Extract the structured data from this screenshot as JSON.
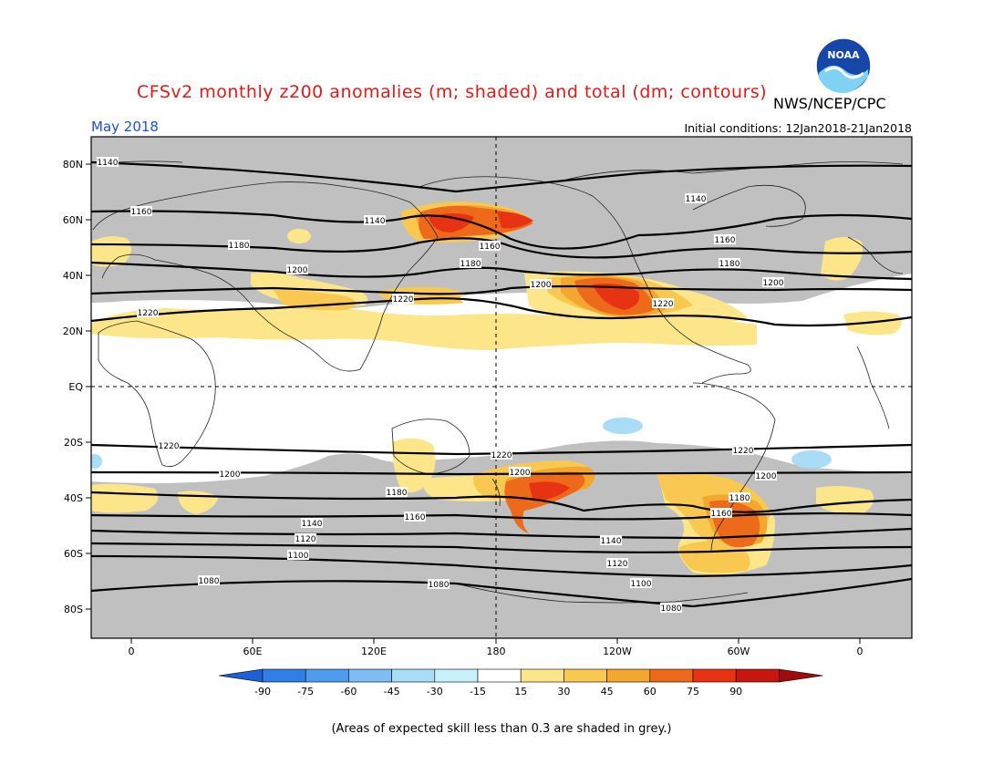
{
  "title": "CFSv2 monthly z200 anomalies (m; shaded) and total (dm; contours)",
  "agency": "NWS/NCEP/CPC",
  "valid_month": "May 2018",
  "initial_conditions": "Initial conditions: 12Jan2018-21Jan2018",
  "footnote": "(Areas of expected skill less than 0.3 are shaded in grey.)",
  "logo_text": "NOAA",
  "lat_labels": [
    "80N",
    "60N",
    "40N",
    "20N",
    "EQ",
    "20S",
    "40S",
    "60S",
    "80S"
  ],
  "lon_labels": [
    "0",
    "60E",
    "120E",
    "180",
    "120W",
    "60W",
    "0"
  ],
  "contour_labels": [
    "1140",
    "1160",
    "1180",
    "1200",
    "1220",
    "1220",
    "1200",
    "1180",
    "1160",
    "1140",
    "1120",
    "1100",
    "1080"
  ],
  "colorbar": {
    "ticks": [
      "-90",
      "-75",
      "-60",
      "-45",
      "-30",
      "-15",
      "15",
      "30",
      "45",
      "60",
      "75",
      "90"
    ],
    "colors": [
      "#1e5fd6",
      "#2f7fe6",
      "#4f9bee",
      "#7fbcf3",
      "#a9dcf7",
      "#c8f0f8",
      "#ffffff",
      "#fde68a",
      "#f9c850",
      "#f4a72e",
      "#ee6a1b",
      "#e73314",
      "#c5170f",
      "#9f0b0b"
    ]
  },
  "colors": {
    "skill_grey": "#c0c0c0",
    "title_red": "#e01a1a",
    "month_blue": "#1f4fd8"
  }
}
